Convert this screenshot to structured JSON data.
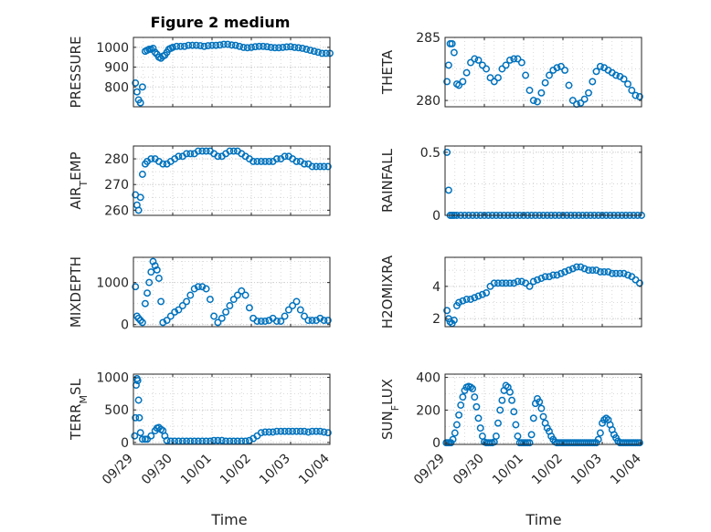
{
  "figure": {
    "title": "Figure 2 medium",
    "xlabel": "Time"
  },
  "colors": {
    "marker": "#0072bd",
    "axes": "#262626",
    "grid": "#cfcfcf",
    "background": "#ffffff"
  },
  "chart_data": [
    {
      "type": "scatter",
      "name": "pressure",
      "ylabel": "PRESSURE",
      "title": "Figure 2 medium",
      "ylim": [
        700,
        1050
      ],
      "yticks": [
        800,
        900,
        1000
      ],
      "xlim": [
        0,
        5
      ],
      "grid": true,
      "x": [
        0.05,
        0.09,
        0.13,
        0.18,
        0.23,
        0.3,
        0.35,
        0.4,
        0.45,
        0.5,
        0.55,
        0.6,
        0.65,
        0.7,
        0.75,
        0.8,
        0.85,
        0.9,
        0.95,
        1.0,
        1.1,
        1.2,
        1.3,
        1.4,
        1.5,
        1.6,
        1.7,
        1.8,
        1.9,
        2.0,
        2.1,
        2.2,
        2.3,
        2.4,
        2.5,
        2.6,
        2.7,
        2.8,
        2.9,
        3.0,
        3.1,
        3.2,
        3.3,
        3.4,
        3.5,
        3.6,
        3.7,
        3.8,
        3.9,
        4.0,
        4.1,
        4.2,
        4.3,
        4.4,
        4.5,
        4.6,
        4.7,
        4.8,
        4.9,
        5.0
      ],
      "y": [
        820,
        775,
        735,
        720,
        800,
        980,
        985,
        990,
        990,
        995,
        975,
        965,
        950,
        945,
        955,
        960,
        975,
        990,
        995,
        1000,
        1005,
        1005,
        1005,
        1010,
        1010,
        1010,
        1008,
        1005,
        1008,
        1010,
        1010,
        1012,
        1015,
        1015,
        1012,
        1010,
        1005,
        1000,
        998,
        1000,
        1003,
        1005,
        1005,
        1003,
        1000,
        998,
        998,
        1000,
        1002,
        1003,
        1000,
        998,
        995,
        990,
        985,
        980,
        975,
        970,
        970,
        970
      ]
    },
    {
      "type": "scatter",
      "name": "theta",
      "ylabel": "THETA",
      "ylim": [
        279.5,
        285
      ],
      "yticks": [
        280,
        285
      ],
      "xlim": [
        0,
        5
      ],
      "grid": true,
      "x": [
        0.05,
        0.09,
        0.13,
        0.18,
        0.23,
        0.3,
        0.35,
        0.45,
        0.55,
        0.65,
        0.75,
        0.85,
        0.95,
        1.05,
        1.15,
        1.25,
        1.35,
        1.45,
        1.55,
        1.65,
        1.75,
        1.85,
        1.95,
        2.05,
        2.15,
        2.25,
        2.35,
        2.45,
        2.55,
        2.65,
        2.75,
        2.85,
        2.95,
        3.05,
        3.15,
        3.25,
        3.35,
        3.45,
        3.55,
        3.65,
        3.75,
        3.85,
        3.95,
        4.05,
        4.15,
        4.25,
        4.35,
        4.45,
        4.55,
        4.65,
        4.75,
        4.85,
        4.95
      ],
      "y": [
        281.5,
        282.8,
        284.5,
        284.5,
        283.8,
        281.3,
        281.2,
        281.5,
        282.2,
        283.0,
        283.3,
        283.2,
        282.8,
        282.5,
        281.8,
        281.5,
        281.8,
        282.5,
        282.8,
        283.2,
        283.3,
        283.3,
        283.0,
        282.0,
        280.8,
        280.0,
        279.9,
        280.6,
        281.4,
        282.0,
        282.4,
        282.6,
        282.7,
        282.4,
        281.2,
        280.0,
        279.7,
        279.8,
        280.1,
        280.6,
        281.5,
        282.3,
        282.7,
        282.6,
        282.4,
        282.2,
        282.0,
        281.9,
        281.7,
        281.3,
        280.8,
        280.4,
        280.3
      ]
    },
    {
      "type": "scatter",
      "name": "air-temp",
      "ylabel": "AIR_TEMP",
      "ylim": [
        258,
        285
      ],
      "yticks": [
        260,
        270,
        280
      ],
      "xlim": [
        0,
        5
      ],
      "grid": true,
      "x": [
        0.05,
        0.09,
        0.13,
        0.18,
        0.23,
        0.3,
        0.35,
        0.45,
        0.55,
        0.65,
        0.75,
        0.85,
        0.95,
        1.05,
        1.15,
        1.25,
        1.35,
        1.45,
        1.55,
        1.65,
        1.75,
        1.85,
        1.95,
        2.05,
        2.15,
        2.25,
        2.35,
        2.45,
        2.55,
        2.65,
        2.75,
        2.85,
        2.95,
        3.05,
        3.15,
        3.25,
        3.35,
        3.45,
        3.55,
        3.65,
        3.75,
        3.85,
        3.95,
        4.05,
        4.15,
        4.25,
        4.35,
        4.45,
        4.55,
        4.65,
        4.75,
        4.85,
        4.95
      ],
      "y": [
        266,
        262,
        260,
        265,
        274,
        278,
        279,
        280,
        280,
        279,
        278,
        278,
        279,
        280,
        281,
        281,
        282,
        282,
        282,
        283,
        283,
        283,
        283,
        282,
        281,
        281,
        282,
        283,
        283,
        283,
        282,
        281,
        280,
        279,
        279,
        279,
        279,
        279,
        279,
        280,
        280,
        281,
        281,
        280,
        279,
        279,
        278,
        278,
        277,
        277,
        277,
        277,
        277
      ],
      "ylabel_main": "AIR",
      "ylabel_sub": "T",
      "ylabel_rest": "EMP"
    },
    {
      "type": "scatter",
      "name": "rainfall",
      "ylabel": "RAINFALL",
      "ylim": [
        0,
        0.55
      ],
      "yticks": [
        0,
        0.5
      ],
      "xlim": [
        0,
        5
      ],
      "grid": true,
      "x": [
        0.05,
        0.09,
        0.13,
        0.18,
        0.23,
        0.3,
        0.4,
        0.5,
        0.6,
        0.7,
        0.8,
        0.9,
        1.0,
        1.1,
        1.2,
        1.3,
        1.4,
        1.5,
        1.6,
        1.7,
        1.8,
        1.9,
        2.0,
        2.1,
        2.2,
        2.3,
        2.4,
        2.5,
        2.6,
        2.7,
        2.8,
        2.9,
        3.0,
        3.1,
        3.2,
        3.3,
        3.4,
        3.5,
        3.6,
        3.7,
        3.8,
        3.9,
        4.0,
        4.1,
        4.2,
        4.3,
        4.4,
        4.5,
        4.6,
        4.7,
        4.8,
        4.9,
        5.0
      ],
      "y": [
        0.5,
        0.2,
        0,
        0,
        0,
        0,
        0,
        0,
        0,
        0,
        0,
        0,
        0,
        0,
        0,
        0,
        0,
        0,
        0,
        0,
        0,
        0,
        0,
        0,
        0,
        0,
        0,
        0,
        0,
        0,
        0,
        0,
        0,
        0,
        0,
        0,
        0,
        0,
        0,
        0,
        0,
        0,
        0,
        0,
        0,
        0,
        0,
        0,
        0,
        0,
        0,
        0,
        0
      ]
    },
    {
      "type": "scatter",
      "name": "mixdepth",
      "ylabel": "MIXDEPTH",
      "ylim": [
        -50,
        1600
      ],
      "yticks": [
        0,
        1000
      ],
      "xlim": [
        0,
        5
      ],
      "grid": true,
      "x": [
        0.05,
        0.09,
        0.13,
        0.18,
        0.23,
        0.3,
        0.35,
        0.4,
        0.45,
        0.5,
        0.55,
        0.6,
        0.65,
        0.7,
        0.75,
        0.85,
        0.95,
        1.05,
        1.15,
        1.25,
        1.35,
        1.45,
        1.55,
        1.65,
        1.75,
        1.85,
        1.95,
        2.05,
        2.15,
        2.25,
        2.35,
        2.45,
        2.55,
        2.65,
        2.75,
        2.85,
        2.95,
        3.05,
        3.15,
        3.25,
        3.35,
        3.45,
        3.55,
        3.65,
        3.75,
        3.85,
        3.95,
        4.05,
        4.15,
        4.25,
        4.35,
        4.45,
        4.55,
        4.65,
        4.75,
        4.85,
        4.95
      ],
      "y": [
        900,
        200,
        150,
        100,
        50,
        500,
        750,
        1000,
        1250,
        1500,
        1400,
        1300,
        1100,
        550,
        50,
        100,
        200,
        300,
        350,
        450,
        550,
        700,
        850,
        900,
        900,
        850,
        600,
        200,
        50,
        150,
        300,
        450,
        600,
        700,
        800,
        700,
        400,
        150,
        80,
        80,
        80,
        100,
        150,
        80,
        80,
        200,
        350,
        450,
        550,
        350,
        200,
        100,
        100,
        100,
        150,
        100,
        100
      ]
    },
    {
      "type": "scatter",
      "name": "h2o-mixing-ratio",
      "ylabel": "H2OMIXRA",
      "ylim": [
        1.5,
        5.8
      ],
      "yticks": [
        2,
        4
      ],
      "xlim": [
        0,
        5
      ],
      "grid": true,
      "x": [
        0.05,
        0.09,
        0.13,
        0.18,
        0.23,
        0.3,
        0.35,
        0.45,
        0.55,
        0.65,
        0.75,
        0.85,
        0.95,
        1.05,
        1.15,
        1.25,
        1.35,
        1.45,
        1.55,
        1.65,
        1.75,
        1.85,
        1.95,
        2.05,
        2.15,
        2.25,
        2.35,
        2.45,
        2.55,
        2.65,
        2.75,
        2.85,
        2.95,
        3.05,
        3.15,
        3.25,
        3.35,
        3.45,
        3.55,
        3.65,
        3.75,
        3.85,
        3.95,
        4.05,
        4.15,
        4.25,
        4.35,
        4.45,
        4.55,
        4.65,
        4.75,
        4.85,
        4.95
      ],
      "y": [
        2.5,
        2.0,
        1.8,
        1.7,
        1.9,
        2.8,
        3.0,
        3.1,
        3.2,
        3.2,
        3.3,
        3.4,
        3.5,
        3.6,
        4.0,
        4.2,
        4.2,
        4.2,
        4.2,
        4.2,
        4.2,
        4.3,
        4.3,
        4.2,
        4.0,
        4.3,
        4.4,
        4.5,
        4.6,
        4.6,
        4.7,
        4.7,
        4.8,
        4.9,
        5.0,
        5.1,
        5.2,
        5.2,
        5.1,
        5.0,
        5.0,
        5.0,
        4.9,
        4.9,
        4.9,
        4.8,
        4.8,
        4.8,
        4.8,
        4.7,
        4.6,
        4.4,
        4.2
      ]
    },
    {
      "type": "scatter",
      "name": "terr-msl",
      "ylabel": "TERR_MSL",
      "ylim": [
        -30,
        1050
      ],
      "yticks": [
        0,
        500,
        1000
      ],
      "xlim": [
        0,
        5
      ],
      "grid": true,
      "x": [
        0.03,
        0.05,
        0.07,
        0.09,
        0.11,
        0.13,
        0.15,
        0.18,
        0.23,
        0.3,
        0.35,
        0.45,
        0.55,
        0.6,
        0.65,
        0.7,
        0.75,
        0.8,
        0.85,
        0.95,
        1.05,
        1.15,
        1.25,
        1.35,
        1.45,
        1.55,
        1.65,
        1.75,
        1.85,
        1.95,
        2.05,
        2.15,
        2.25,
        2.35,
        2.45,
        2.55,
        2.65,
        2.75,
        2.85,
        2.95,
        3.05,
        3.15,
        3.25,
        3.35,
        3.45,
        3.55,
        3.65,
        3.75,
        3.85,
        3.95,
        4.05,
        4.15,
        4.25,
        4.35,
        4.45,
        4.55,
        4.65,
        4.75,
        4.85,
        4.95
      ],
      "y": [
        100,
        380,
        880,
        980,
        950,
        650,
        380,
        150,
        50,
        50,
        50,
        100,
        180,
        220,
        230,
        200,
        180,
        100,
        30,
        20,
        20,
        20,
        20,
        20,
        20,
        20,
        20,
        20,
        20,
        20,
        30,
        30,
        30,
        20,
        20,
        20,
        20,
        20,
        20,
        30,
        60,
        100,
        150,
        160,
        160,
        160,
        170,
        170,
        170,
        170,
        170,
        170,
        170,
        170,
        160,
        170,
        170,
        170,
        160,
        150
      ],
      "ylabel_main": "TERR",
      "ylabel_sub": "M",
      "ylabel_rest": "SL"
    },
    {
      "type": "scatter",
      "name": "sun-flux",
      "ylabel": "SUN_FLUX",
      "ylim": [
        -10,
        420
      ],
      "yticks": [
        0,
        200,
        400
      ],
      "xlim": [
        0,
        5
      ],
      "grid": true,
      "xticklabels": [
        "09/29",
        "09/30",
        "10/01",
        "10/02",
        "10/03",
        "10/04"
      ],
      "x": [
        0.03,
        0.07,
        0.11,
        0.15,
        0.2,
        0.25,
        0.3,
        0.35,
        0.4,
        0.45,
        0.5,
        0.55,
        0.6,
        0.65,
        0.7,
        0.75,
        0.8,
        0.85,
        0.9,
        0.95,
        1.0,
        1.05,
        1.1,
        1.15,
        1.2,
        1.25,
        1.3,
        1.35,
        1.4,
        1.45,
        1.5,
        1.55,
        1.6,
        1.65,
        1.7,
        1.75,
        1.8,
        1.85,
        1.9,
        1.95,
        2.0,
        2.05,
        2.1,
        2.15,
        2.2,
        2.25,
        2.3,
        2.35,
        2.4,
        2.45,
        2.5,
        2.55,
        2.6,
        2.65,
        2.7,
        2.75,
        2.8,
        2.85,
        2.9,
        2.95,
        3.0,
        3.05,
        3.1,
        3.15,
        3.2,
        3.25,
        3.3,
        3.35,
        3.4,
        3.45,
        3.5,
        3.55,
        3.6,
        3.65,
        3.7,
        3.75,
        3.8,
        3.85,
        3.9,
        3.95,
        4.0,
        4.05,
        4.1,
        4.15,
        4.2,
        4.25,
        4.3,
        4.35,
        4.4,
        4.45,
        4.5,
        4.55,
        4.6,
        4.65,
        4.7,
        4.75,
        4.8,
        4.85,
        4.9,
        4.95
      ],
      "y": [
        0,
        0,
        0,
        0,
        20,
        60,
        110,
        170,
        230,
        280,
        320,
        340,
        345,
        340,
        330,
        280,
        220,
        150,
        90,
        40,
        5,
        0,
        0,
        0,
        0,
        5,
        40,
        120,
        200,
        260,
        320,
        350,
        340,
        310,
        260,
        190,
        110,
        40,
        0,
        0,
        0,
        0,
        0,
        0,
        50,
        150,
        240,
        270,
        250,
        210,
        160,
        120,
        90,
        70,
        40,
        20,
        5,
        0,
        0,
        0,
        0,
        0,
        0,
        0,
        0,
        0,
        0,
        0,
        0,
        0,
        0,
        0,
        0,
        0,
        0,
        0,
        0,
        0,
        20,
        60,
        120,
        140,
        150,
        140,
        110,
        80,
        50,
        30,
        10,
        0,
        0,
        0,
        0,
        0,
        0,
        0,
        0,
        0,
        0,
        0
      ],
      "ylabel_main": "SUN",
      "ylabel_sub": "F",
      "ylabel_rest": "LUX"
    }
  ]
}
